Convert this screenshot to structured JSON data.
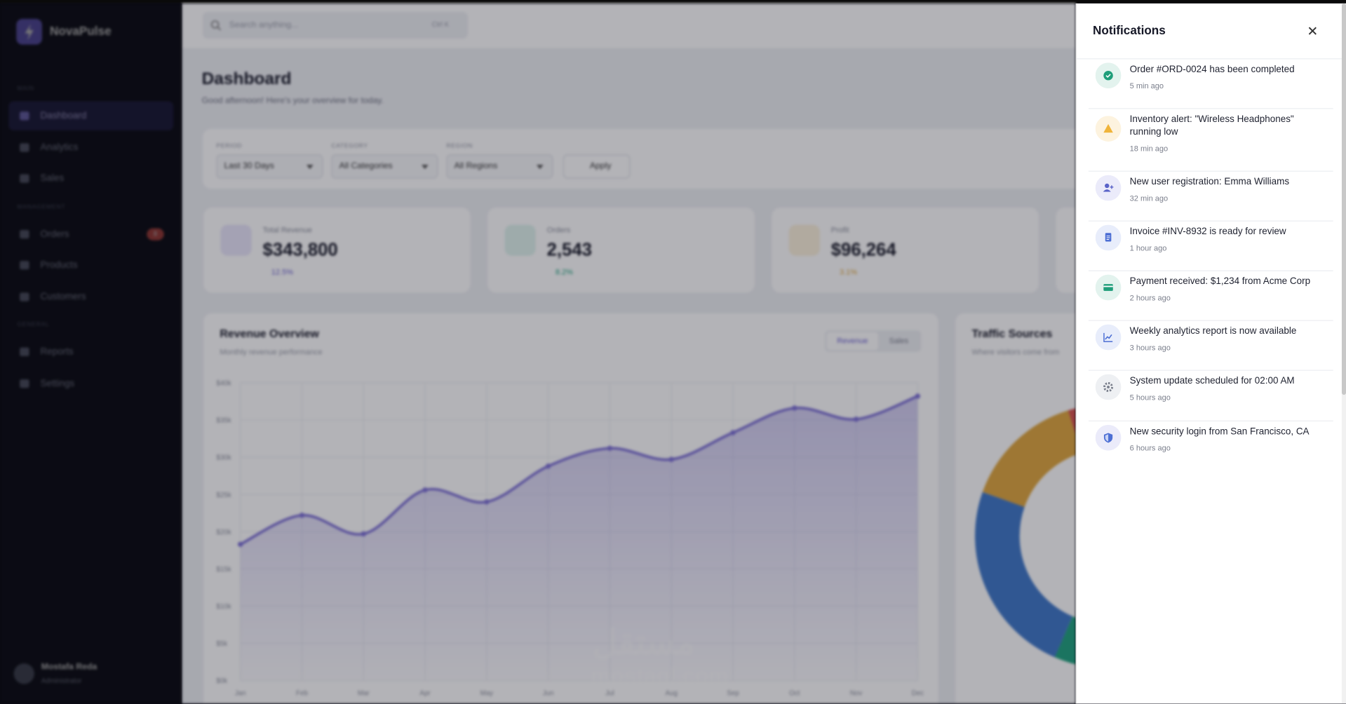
{
  "sidebar": {
    "brand": "NovaPulse",
    "sections": [
      {
        "title": "MAIN",
        "items": [
          "Dashboard",
          "Analytics",
          "Sales"
        ]
      },
      {
        "title": "MANAGEMENT",
        "items": [
          "Orders",
          "Products",
          "Customers"
        ]
      },
      {
        "title": "GENERAL",
        "items": [
          "Reports",
          "Settings"
        ]
      }
    ],
    "orders_badge": "8",
    "user": {
      "name": "Mostafa Reda",
      "role": "Administrator"
    }
  },
  "header": {
    "search_placeholder": "Search anything...",
    "shortcut": "Ctrl K",
    "title": "Dashboard",
    "subtitle": "Good afternoon! Here's your overview for today."
  },
  "filters": {
    "fields": [
      {
        "label": "PERIOD",
        "value": "Last 30 Days"
      },
      {
        "label": "CATEGORY",
        "value": "All Categories"
      },
      {
        "label": "REGION",
        "value": "All Regions"
      }
    ],
    "apply": "Apply"
  },
  "stats": [
    {
      "label": "Total Revenue",
      "value": "$343,800",
      "change": "12.5%"
    },
    {
      "label": "Orders",
      "value": "2,543",
      "change": "8.2%"
    },
    {
      "label": "Profit",
      "value": "$96,264",
      "change": "3.1%"
    }
  ],
  "revenue_card": {
    "title": "Revenue Overview",
    "subtitle": "Monthly revenue performance",
    "tabs": [
      "Revenue",
      "Sales"
    ]
  },
  "chart_data": {
    "type": "line",
    "categories": [
      "Jan",
      "Feb",
      "Mar",
      "Apr",
      "May",
      "Jun",
      "Jul",
      "Aug",
      "Sep",
      "Oct",
      "Nov",
      "Dec"
    ],
    "values": [
      18300,
      22200,
      19700,
      25600,
      24000,
      28800,
      31200,
      29700,
      33300,
      36600,
      35100,
      38200
    ],
    "color": "#7c6fd6",
    "ylim": [
      0,
      40000
    ],
    "yticks": [
      {
        "value": 0,
        "label": "$0k"
      },
      {
        "value": 5000,
        "label": "$5k"
      },
      {
        "value": 10000,
        "label": "$10k"
      },
      {
        "value": 15000,
        "label": "$15k"
      },
      {
        "value": 20000,
        "label": "$20k"
      },
      {
        "value": 25000,
        "label": "$25k"
      },
      {
        "value": 30000,
        "label": "$30k"
      },
      {
        "value": 35000,
        "label": "$35k"
      },
      {
        "value": 40000,
        "label": "$40k"
      }
    ],
    "grid": true
  },
  "traffic": {
    "title": "Traffic Sources",
    "subtitle": "Where visitors come from"
  },
  "watermark": [
    "مستقل",
    "mostaql.com"
  ],
  "notifications": {
    "title": "Notifications",
    "items": [
      {
        "text": "Order #ORD-0024 has been completed",
        "time": "5 min ago"
      },
      {
        "text": "Inventory alert: \"Wireless Headphones\" running low",
        "time": "18 min ago"
      },
      {
        "text": "New user registration: Emma Williams",
        "time": "32 min ago"
      },
      {
        "text": "Invoice #INV-8932 is ready for review",
        "time": "1 hour ago"
      },
      {
        "text": "Payment received: $1,234 from Acme Corp",
        "time": "2 hours ago"
      },
      {
        "text": "Weekly analytics report is now available",
        "time": "3 hours ago"
      },
      {
        "text": "System update scheduled for 02:00 AM",
        "time": "5 hours ago"
      },
      {
        "text": "New security login from San Francisco, CA",
        "time": "6 hours ago"
      }
    ]
  }
}
